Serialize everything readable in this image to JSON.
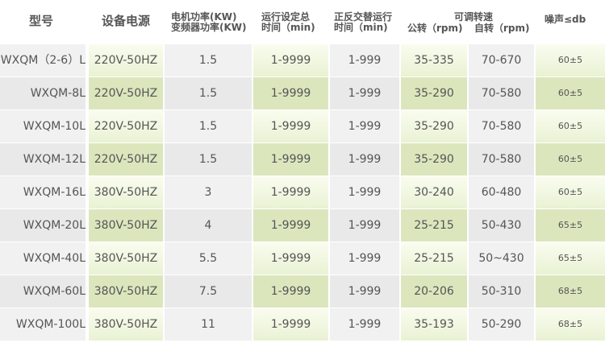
{
  "headers": {
    "model": "型号",
    "power": "设备电源",
    "motor1": "电机功率(KW)",
    "motor2": "变频器功率(KW)",
    "run1": "运行设定总",
    "run2": "时间（min)",
    "alt1": "正反交替运行",
    "alt2": "时间（min)",
    "speed": "可调转速",
    "rev": "公转（rpm)",
    "rot": "自转（rpm)",
    "noise": "噪声≤db"
  },
  "rows": [
    {
      "model": "WXQM（2-6）L",
      "power": "220V-50HZ",
      "motor": "1.5",
      "run": "1-9999",
      "alt": "1-999",
      "rev": "35-335",
      "rot": "70-670",
      "noise": "60±5"
    },
    {
      "model": "WXQM-8L",
      "power": "220V-50HZ",
      "motor": "1.5",
      "run": "1-9999",
      "alt": "1-999",
      "rev": "35-290",
      "rot": "70-580",
      "noise": "60±5"
    },
    {
      "model": "WXQM-10L",
      "power": "220V-50HZ",
      "motor": "1.5",
      "run": "1-9999",
      "alt": "1-999",
      "rev": "35-290",
      "rot": "70-580",
      "noise": "60±5"
    },
    {
      "model": "WXQM-12L",
      "power": "220V-50HZ",
      "motor": "1.5",
      "run": "1-9999",
      "alt": "1-999",
      "rev": "35-290",
      "rot": "70-580",
      "noise": "60±5"
    },
    {
      "model": "WXQM-16L",
      "power": "380V-50HZ",
      "motor": "3",
      "run": "1-9999",
      "alt": "1-999",
      "rev": "30-240",
      "rot": "60-480",
      "noise": "60±5"
    },
    {
      "model": "WXQM-20L",
      "power": "380V-50HZ",
      "motor": "4",
      "run": "1-9999",
      "alt": "1-999",
      "rev": "25-215",
      "rot": "50-430",
      "noise": "65±5"
    },
    {
      "model": "WXQM-40L",
      "power": "380V-50HZ",
      "motor": "5.5",
      "run": "1-9999",
      "alt": "1-999",
      "rev": "25-215",
      "rot": "50~430",
      "noise": "65±5"
    },
    {
      "model": "WXQM-60L",
      "power": "380V-50HZ",
      "motor": "7.5",
      "run": "1-9999",
      "alt": "1-999",
      "rev": "20-206",
      "rot": "50-310",
      "noise": "68±5"
    },
    {
      "model": "WXQM-100L",
      "power": "380V-50HZ",
      "motor": "11",
      "run": "1-9999",
      "alt": "1-999",
      "rev": "35-193",
      "rot": "50-290",
      "noise": "68±5"
    }
  ]
}
